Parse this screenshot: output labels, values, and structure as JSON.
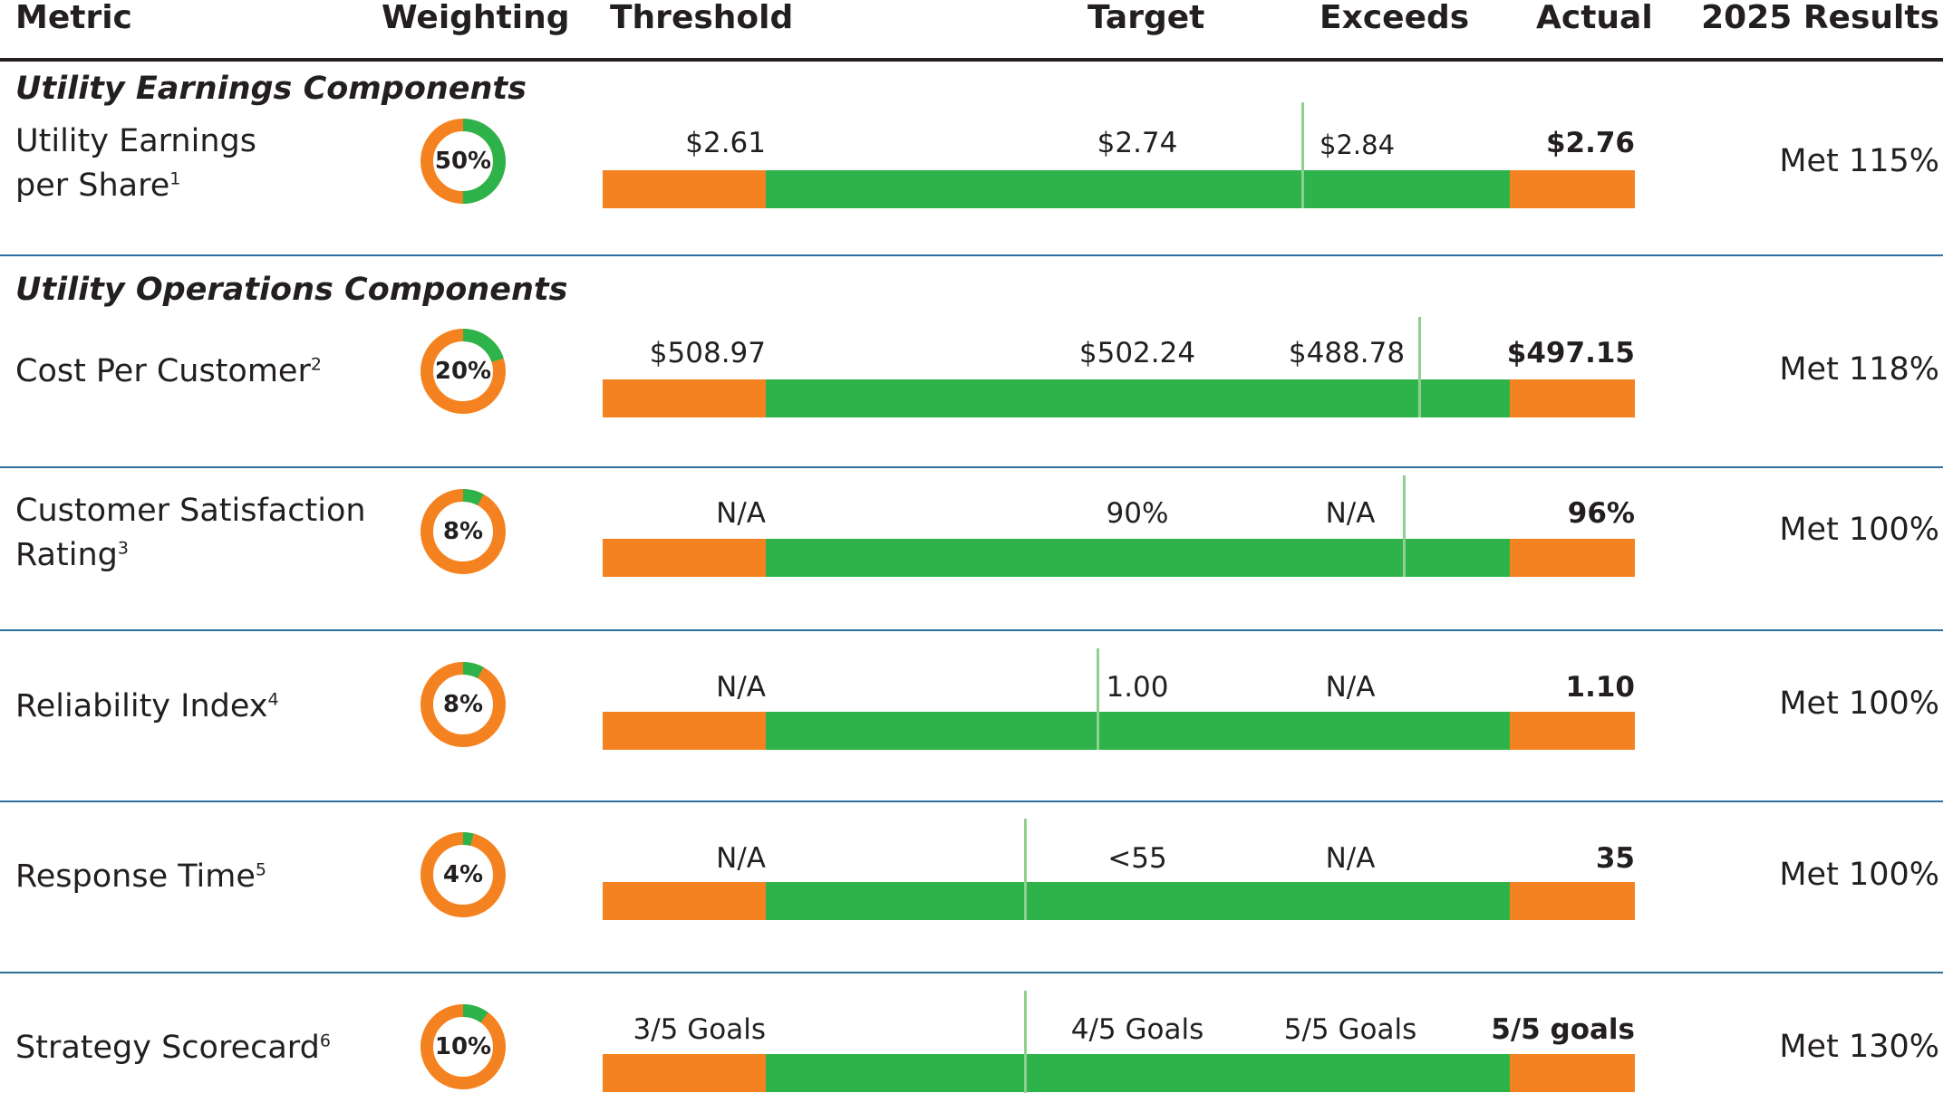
{
  "colors": {
    "orange": "#f58220",
    "green": "#2db34a",
    "marker": "#8fd08f",
    "rule": "#2f6f9e"
  },
  "header": {
    "metric": "Metric",
    "weighting": "Weighting",
    "threshold": "Threshold",
    "target": "Target",
    "exceeds": "Exceeds",
    "actual": "Actual",
    "results": "2025 Results"
  },
  "sections": {
    "earnings": "Utility Earnings Components",
    "operations": "Utility Operations Components"
  },
  "rows": [
    {
      "metric_line1": "Utility Earnings",
      "metric_line2": "per Share",
      "footnote": "1",
      "weight": "50%",
      "weight_fraction": 0.5,
      "threshold": "$2.61",
      "target": "$2.74",
      "exceeds": "$2.84",
      "actual": "$2.76",
      "result": "Met 115%"
    },
    {
      "metric_line1": "Cost Per Customer",
      "metric_line2": "",
      "footnote": "2",
      "weight": "20%",
      "weight_fraction": 0.2,
      "threshold": "$508.97",
      "target": "$502.24",
      "exceeds": "$488.78",
      "actual": "$497.15",
      "result": "Met 118%"
    },
    {
      "metric_line1": "Customer Satisfaction",
      "metric_line2": "Rating",
      "footnote": "3",
      "weight": "8%",
      "weight_fraction": 0.08,
      "threshold": "N/A",
      "target": "90%",
      "exceeds": "N/A",
      "actual": "96%",
      "result": "Met 100%"
    },
    {
      "metric_line1": "Reliability Index",
      "metric_line2": "",
      "footnote": "4",
      "weight": "8%",
      "weight_fraction": 0.08,
      "threshold": "N/A",
      "target": "1.00",
      "exceeds": "N/A",
      "actual": "1.10",
      "result": "Met 100%"
    },
    {
      "metric_line1": "Response Time",
      "metric_line2": "",
      "footnote": "5",
      "weight": "4%",
      "weight_fraction": 0.04,
      "threshold": "N/A",
      "target": "<55",
      "exceeds": "N/A",
      "actual": "35",
      "result": "Met 100%"
    },
    {
      "metric_line1": "Strategy Scorecard",
      "metric_line2": "",
      "footnote": "6",
      "weight": "10%",
      "weight_fraction": 0.1,
      "threshold": "3/5 Goals",
      "target": "4/5 Goals",
      "exceeds": "5/5 Goals",
      "actual": "5/5 goals",
      "result": "Met 130%"
    }
  ]
}
